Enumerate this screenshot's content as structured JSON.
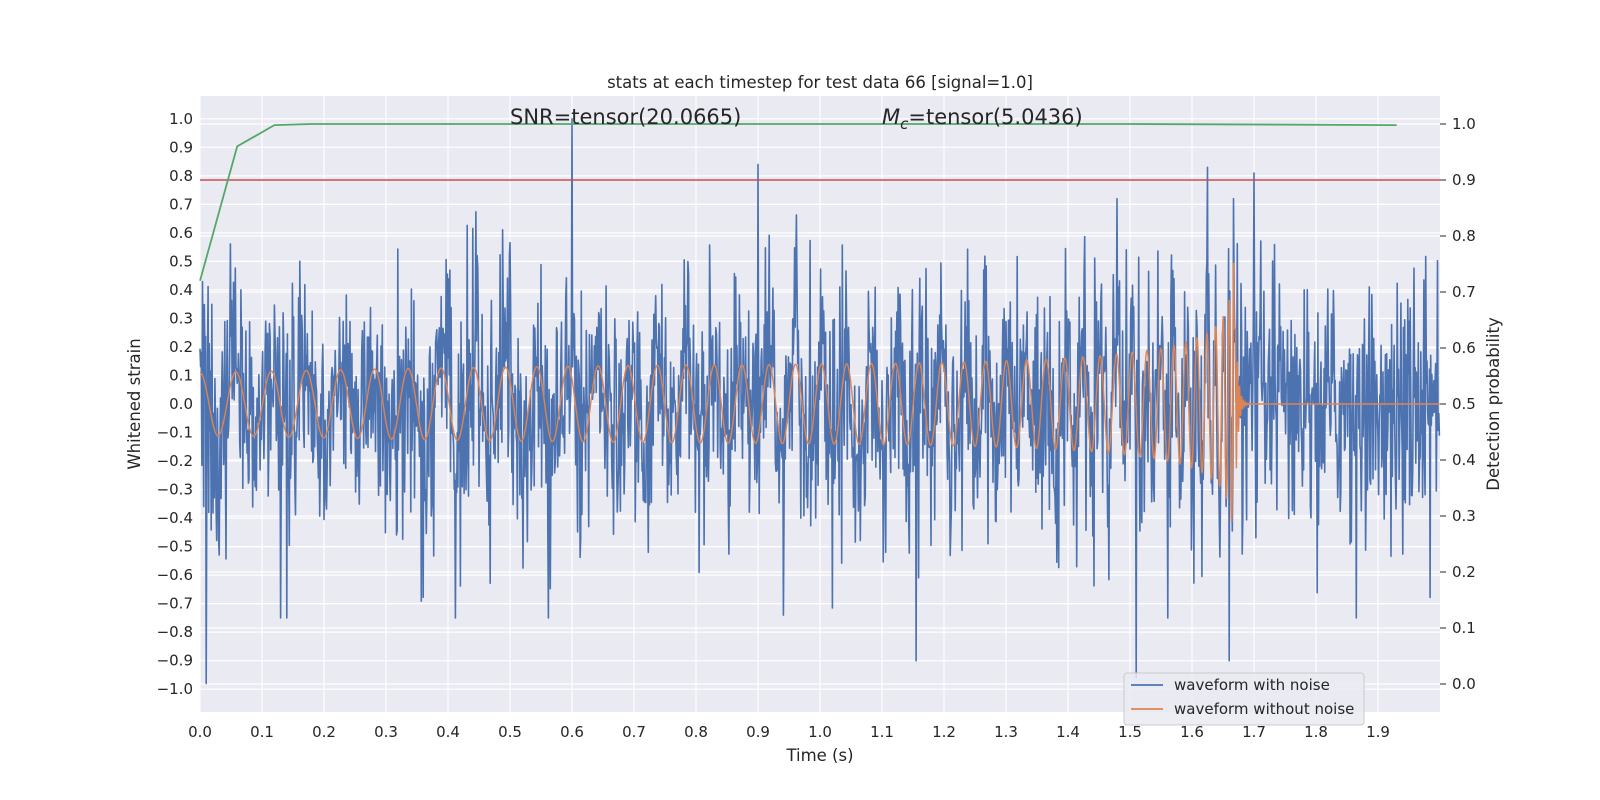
{
  "chart_data": {
    "type": "line",
    "title": "stats at each timestep for test data 66 [signal=1.0]",
    "xlabel": "Time (s)",
    "ylabel": "Whitened strain",
    "ylabel_right": "Detection probability",
    "xlim": [
      0.0,
      2.0
    ],
    "ylim": [
      -1.08,
      1.08
    ],
    "ylim_right": [
      -0.05,
      1.05
    ],
    "xticks": [
      "0.0",
      "0.1",
      "0.2",
      "0.3",
      "0.4",
      "0.5",
      "0.6",
      "0.7",
      "0.8",
      "0.9",
      "1.0",
      "1.1",
      "1.2",
      "1.3",
      "1.4",
      "1.5",
      "1.6",
      "1.7",
      "1.8",
      "1.9"
    ],
    "yticks": [
      "1.0",
      "0.9",
      "0.8",
      "0.7",
      "0.6",
      "0.5",
      "0.4",
      "0.3",
      "0.2",
      "0.1",
      "0.0",
      "-0.1",
      "-0.2",
      "-0.3",
      "-0.4",
      "-0.5",
      "-0.6",
      "-0.7",
      "-0.8",
      "-0.9",
      "-1.0"
    ],
    "yticks_right": [
      "1.0",
      "0.9",
      "0.8",
      "0.7",
      "0.6",
      "0.5",
      "0.4",
      "0.3",
      "0.2",
      "0.1",
      "0.0"
    ],
    "annotations": {
      "snr": "SNR=tensor(20.0665)",
      "mc_symbol": "M",
      "mc_subscript": "c",
      "mc_value": "=tensor(5.0436)"
    },
    "grid": true,
    "legend_position": "lower-right",
    "series": [
      {
        "name": "waveform with noise",
        "axis": "left",
        "color": "#4c72b0",
        "description": "whitened noisy strain, amplitude mostly within -0.6..0.7",
        "peaks": [
          [
            0.01,
            -0.98
          ],
          [
            0.6,
            1.0
          ],
          [
            0.9,
            0.84
          ],
          [
            1.155,
            -0.9
          ],
          [
            1.51,
            -0.96
          ],
          [
            1.625,
            0.83
          ],
          [
            1.66,
            -0.9
          ],
          [
            1.7,
            0.81
          ]
        ]
      },
      {
        "name": "waveform without noise",
        "axis": "left",
        "color": "#dd8452",
        "description": "chirp signal growing in amplitude and frequency until merger",
        "merger_time": 1.67,
        "amplitude_start": 0.11,
        "amplitude_peak": 0.57
      },
      {
        "name": "",
        "axis": "right",
        "color": "#55a868",
        "x": [
          0.0,
          0.06,
          0.12,
          0.18,
          0.25,
          0.4,
          1.0,
          1.5,
          1.93
        ],
        "y": [
          0.72,
          0.96,
          0.998,
          1.0,
          1.0,
          1.0,
          1.0,
          1.0,
          0.998
        ]
      },
      {
        "name": "",
        "axis": "right",
        "color": "#c44e52",
        "type": "hline",
        "y": 0.9
      }
    ]
  }
}
